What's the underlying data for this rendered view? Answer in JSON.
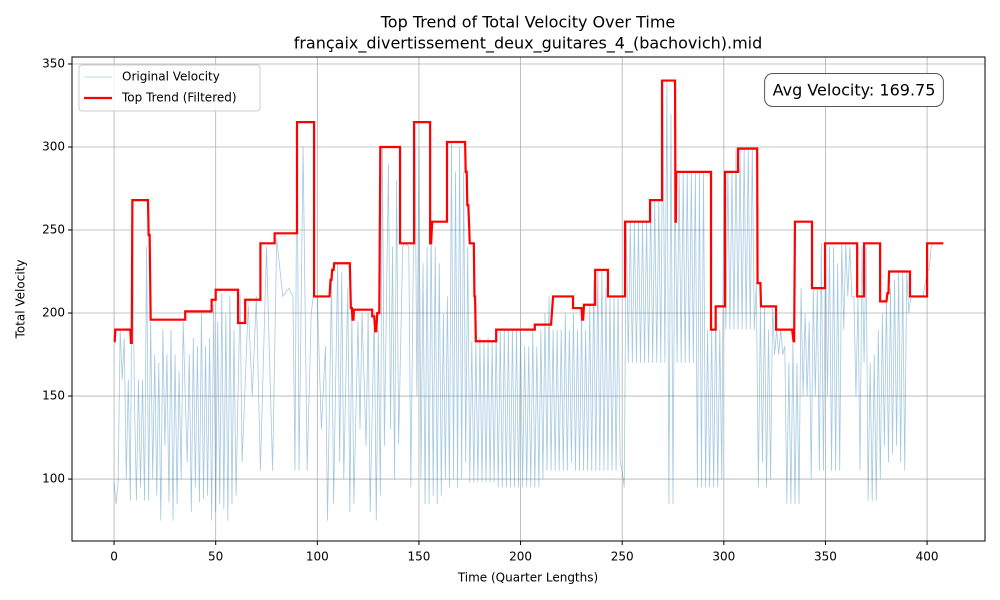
{
  "chart_data": {
    "type": "line",
    "title": "Top Trend of Total Velocity Over Time",
    "subtitle": "françaix_divertissement_deux_guitares_4_(bachovich).mid",
    "x_label": "Time (Quarter Lengths)",
    "y_label": "Total Velocity",
    "xlim": [
      -20.7,
      428.5
    ],
    "ylim": [
      62.7,
      354.2
    ],
    "xticks": [
      0,
      50,
      100,
      150,
      200,
      250,
      300,
      350,
      400
    ],
    "yticks": [
      100,
      150,
      200,
      250,
      300,
      350
    ],
    "grid": true,
    "legend": "upper left",
    "annotation": "Avg Velocity: 169.75",
    "series": [
      {
        "name": "Original Velocity",
        "color": "#1f77b4",
        "alpha": 0.4,
        "width": 0.8,
        "x": [
          0,
          1,
          2,
          3,
          4,
          5,
          6,
          7,
          8,
          9,
          10,
          11,
          12,
          13,
          14,
          15,
          16,
          17,
          18,
          19,
          20,
          21,
          22,
          23,
          24,
          25,
          26,
          27,
          28,
          29,
          30,
          31,
          32,
          33,
          34,
          35,
          36,
          37,
          38,
          39,
          40,
          41,
          42,
          43,
          44,
          45,
          46,
          47,
          48,
          49,
          50,
          51,
          52,
          53,
          54,
          55,
          56,
          57,
          58,
          59,
          60,
          62,
          63,
          66,
          68,
          70,
          72,
          75,
          78,
          80,
          83,
          86,
          88,
          89,
          90,
          91,
          93,
          95,
          97,
          98,
          100,
          102,
          104,
          105,
          107,
          108,
          110,
          111,
          112,
          113,
          115,
          116,
          117,
          118,
          120,
          121,
          122,
          124,
          125,
          126,
          128,
          129,
          130,
          131,
          132,
          133,
          135,
          136,
          137,
          138,
          139,
          140,
          142,
          143,
          145,
          146,
          148,
          149,
          150,
          151,
          152,
          153,
          154,
          155,
          156,
          157,
          158,
          159,
          160,
          161,
          162,
          163,
          164,
          165,
          166,
          167,
          168,
          169,
          170,
          171,
          172,
          173,
          174,
          175,
          176,
          177,
          178,
          179,
          180,
          181,
          182,
          183,
          184,
          185,
          186,
          187,
          188,
          189,
          190,
          191,
          192,
          193,
          194,
          195,
          196,
          197,
          198,
          199,
          200,
          201,
          202,
          203,
          204,
          205,
          206,
          207,
          208,
          209,
          210,
          211,
          212,
          213,
          214,
          215,
          216,
          217,
          218,
          219,
          220,
          221,
          222,
          223,
          224,
          225,
          226,
          227,
          228,
          229,
          230,
          231,
          232,
          233,
          234,
          235,
          236,
          237,
          238,
          239,
          240,
          241,
          242,
          243,
          244,
          245,
          246,
          247,
          248,
          249,
          250,
          251,
          252,
          253,
          254,
          255,
          256,
          257,
          258,
          259,
          260,
          261,
          262,
          263,
          264,
          265,
          266,
          267,
          268,
          269,
          270,
          271,
          272,
          273,
          274,
          275,
          276,
          277,
          278,
          279,
          280,
          281,
          282,
          283,
          284,
          285,
          286,
          287,
          288,
          289,
          290,
          291,
          292,
          293,
          294,
          295,
          296,
          297,
          298,
          299,
          300,
          301,
          302,
          303,
          304,
          305,
          306,
          307,
          308,
          309,
          310,
          311,
          312,
          313,
          314,
          315,
          316,
          317,
          318,
          319,
          320,
          321,
          322,
          323,
          324,
          325,
          326,
          327,
          328,
          329,
          330,
          331,
          332,
          333,
          334,
          335,
          336,
          337,
          338,
          339,
          340,
          341,
          342,
          343,
          344,
          345,
          346,
          347,
          348,
          349,
          350,
          351,
          352,
          353,
          354,
          355,
          356,
          357,
          358,
          359,
          360,
          361,
          362,
          363,
          364,
          365,
          366,
          367,
          368,
          369,
          370,
          371,
          372,
          373,
          374,
          375,
          376,
          377,
          378,
          379,
          380,
          381,
          382,
          383,
          384,
          385,
          386,
          387,
          388,
          389,
          390,
          391,
          392,
          395,
          398,
          400,
          401,
          402,
          403
        ],
        "values": [
          98,
          85,
          98,
          190,
          160,
          185,
          100,
          160,
          87,
          268,
          150,
          87,
          160,
          95,
          160,
          87,
          240,
          87,
          195,
          100,
          175,
          90,
          170,
          75,
          190,
          120,
          175,
          86,
          190,
          75,
          175,
          85,
          165,
          100,
          195,
          150,
          110,
          175,
          80,
          185,
          95,
          180,
          86,
          200,
          88,
          180,
          90,
          185,
          75,
          205,
          80,
          195,
          85,
          212,
          82,
          200,
          75,
          210,
          85,
          190,
          90,
          212,
          110,
          205,
          150,
          210,
          105,
          240,
          105,
          245,
          210,
          215,
          210,
          105,
          315,
          105,
          300,
          105,
          200,
          210,
          210,
          130,
          180,
          75,
          220,
          85,
          230,
          110,
          225,
          100,
          215,
          80,
          200,
          85,
          195,
          130,
          200,
          120,
          200,
          80,
          200,
          75,
          190,
          90,
          300,
          120,
          290,
          130,
          240,
          100,
          280,
          121,
          240,
          242,
          240,
          95,
          315,
          150,
          300,
          100,
          230,
          85,
          240,
          85,
          255,
          90,
          240,
          85,
          230,
          90,
          200,
          100,
          210,
          95,
          303,
          100,
          285,
          95,
          300,
          100,
          285,
          110,
          240,
          98,
          183,
          98,
          183,
          98,
          185,
          98,
          183,
          98,
          185,
          98,
          183,
          98,
          190,
          95,
          190,
          95,
          190,
          95,
          190,
          95,
          190,
          95,
          190,
          95,
          190,
          95,
          180,
          95,
          180,
          95,
          190,
          95,
          180,
          95,
          190,
          100,
          200,
          105,
          210,
          105,
          190,
          105,
          190,
          105,
          190,
          105,
          200,
          105,
          190,
          110,
          200,
          105,
          190,
          105,
          200,
          105,
          190,
          105,
          205,
          105,
          220,
          105,
          226,
          105,
          226,
          105,
          215,
          105,
          210,
          105,
          210,
          105,
          210,
          110,
          105,
          95,
          255,
          170,
          255,
          170,
          255,
          170,
          255,
          170,
          255,
          170,
          255,
          170,
          268,
          170,
          268,
          170,
          268,
          170,
          340,
          170,
          340,
          85,
          320,
          85,
          285,
          170,
          285,
          170,
          285,
          170,
          285,
          170,
          285,
          170,
          285,
          95,
          285,
          95,
          285,
          95,
          190,
          95,
          190,
          95,
          204,
          95,
          190,
          100,
          285,
          190,
          285,
          190,
          285,
          190,
          299,
          190,
          299,
          190,
          299,
          190,
          299,
          190,
          299,
          190,
          218,
          95,
          204,
          110,
          204,
          95,
          190,
          100,
          204,
          175,
          190,
          175,
          190,
          175,
          180,
          85,
          170,
          85,
          183,
          85,
          170,
          85,
          215,
          150,
          200,
          150,
          195,
          100,
          215,
          150,
          215,
          105,
          242,
          105,
          242,
          150,
          240,
          105,
          240,
          105,
          230,
          105,
          242,
          190,
          242,
          210,
          240,
          210,
          210,
          150,
          210,
          105,
          240,
          170,
          240,
          87,
          170,
          87,
          175,
          87,
          190,
          100,
          200,
          120,
          210,
          110,
          215,
          115,
          220,
          120,
          225,
          110,
          225,
          105,
          225,
          200,
          210,
          210,
          210,
          225,
          226,
          240,
          242
        ]
      },
      {
        "name": "Top Trend (Filtered)",
        "color": "#ff0000",
        "alpha": 1,
        "width": 2.2,
        "x": [
          0,
          0.3,
          0.6,
          8,
          8.3,
          8.7,
          9,
          16.7,
          17,
          17.5,
          18,
          35,
          35,
          48,
          48,
          50,
          50,
          61,
          61,
          64.5,
          64.5,
          72,
          72,
          79,
          79,
          90,
          90,
          98.4,
          98.4,
          106,
          106.5,
          107,
          107.3,
          108,
          108.3,
          116,
          116.5,
          117,
          117.3,
          117.8,
          118,
          127,
          127,
          128,
          128.5,
          129,
          129.5,
          130.5,
          131,
          140.7,
          140.7,
          147.6,
          147.6,
          155.5,
          155.5,
          156,
          156.5,
          163.8,
          163.8,
          172.7,
          173,
          173.5,
          173.8,
          174.3,
          175,
          177,
          177.3,
          177.6,
          178,
          188,
          188,
          207,
          207,
          215,
          216,
          225.8,
          225.8,
          230,
          230.3,
          230.8,
          231.2,
          236.7,
          236.7,
          243,
          243,
          251.4,
          251.4,
          263.7,
          263.7,
          269.6,
          269.6,
          276,
          276.2,
          276.4,
          276.6,
          293.7,
          293.7,
          296,
          296,
          300.6,
          300.6,
          307,
          307,
          316.4,
          316.6,
          318,
          318.3,
          325.7,
          325.7,
          333.6,
          334.3,
          334.6,
          335,
          343.4,
          343.4,
          349.8,
          349.8,
          365.6,
          365.6,
          369,
          369,
          376.9,
          376.9,
          380,
          380.5,
          381,
          381.3,
          391.6,
          391.6,
          400,
          400,
          408
        ],
        "values": [
          183,
          183,
          190,
          190,
          182,
          182,
          268,
          268,
          247,
          247,
          196,
          196,
          201,
          201,
          208,
          208,
          214,
          214,
          194,
          194,
          208,
          208,
          242,
          242,
          248,
          248,
          315,
          315,
          210,
          210,
          220,
          220,
          226,
          226,
          230,
          230,
          203,
          203,
          196,
          196,
          202,
          202,
          198,
          198,
          189,
          189,
          200,
          200,
          300,
          300,
          242,
          242,
          315,
          315,
          242,
          242,
          255,
          255,
          303,
          303,
          285,
          285,
          265,
          265,
          242,
          242,
          210,
          210,
          183,
          183,
          190,
          190,
          193,
          193,
          210,
          210,
          203,
          203,
          196,
          196,
          205,
          205,
          226,
          226,
          210,
          210,
          255,
          255,
          268,
          268,
          340,
          340,
          255,
          255,
          285,
          285,
          190,
          190,
          204,
          204,
          285,
          285,
          299,
          299,
          218,
          218,
          204,
          204,
          190,
          190,
          183,
          183,
          255,
          255,
          215,
          215,
          242,
          242,
          210,
          210,
          242,
          242,
          207,
          207,
          212,
          212,
          225,
          225,
          210,
          210,
          242,
          242
        ]
      }
    ]
  }
}
